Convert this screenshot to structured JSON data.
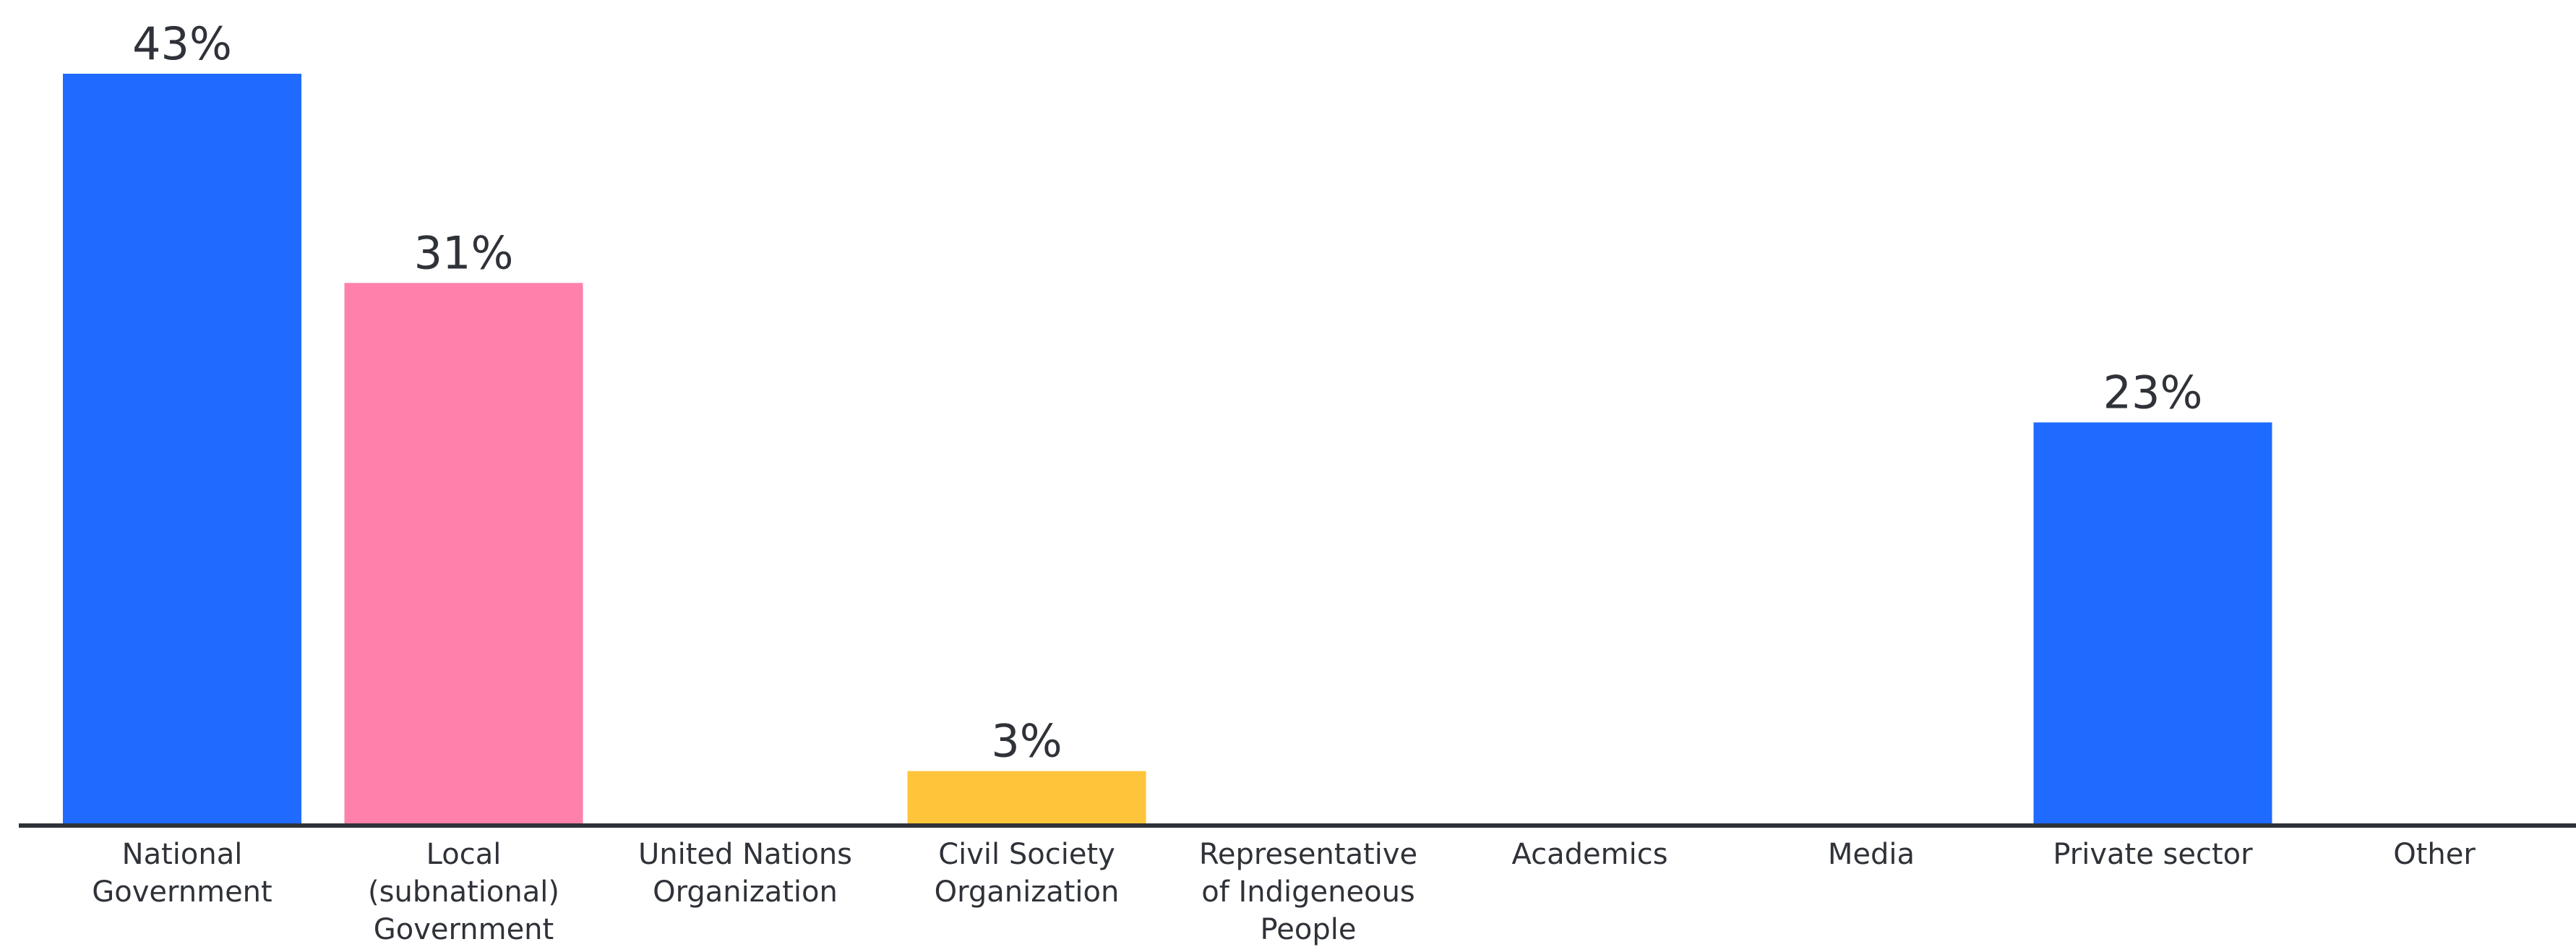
{
  "chart_data": {
    "type": "bar",
    "title": "",
    "xlabel": "",
    "ylabel": "",
    "ylim": [
      0,
      43
    ],
    "grid": false,
    "categories": [
      "National Government",
      "Local (subnational) Government",
      "United Nations Organization",
      "Civil Society Organization",
      "Representative of Indigeneous People",
      "Academics",
      "Media",
      "Private sector",
      "Other"
    ],
    "category_lines": [
      [
        "National",
        "Government"
      ],
      [
        "Local",
        "(subnational)",
        "Government"
      ],
      [
        "United Nations",
        "Organization"
      ],
      [
        "Civil Society",
        "Organization"
      ],
      [
        "Representative",
        "of Indigeneous",
        "People"
      ],
      [
        "Academics"
      ],
      [
        "Media"
      ],
      [
        "Private sector"
      ],
      [
        "Other"
      ]
    ],
    "values": [
      43,
      31,
      null,
      3,
      null,
      null,
      null,
      23,
      null
    ],
    "value_labels": [
      "43%",
      "31%",
      "",
      "3%",
      "",
      "",
      "",
      "23%",
      ""
    ],
    "bar_colors": [
      "#1f6bff",
      "#ff80aa",
      "#1f6bff",
      "#ffc53a",
      "#1f6bff",
      "#1f6bff",
      "#1f6bff",
      "#1f6bff",
      "#1f6bff"
    ],
    "axis_color": "#2f3238"
  }
}
